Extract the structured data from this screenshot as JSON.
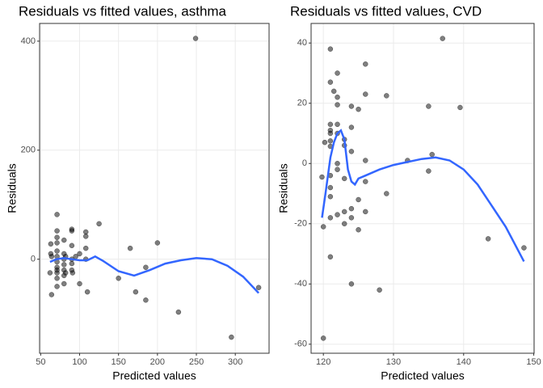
{
  "chart_data": [
    {
      "type": "scatter",
      "title": "Residuals vs fitted values, asthma",
      "x_label": "Predicted values",
      "y_label": "Residuals",
      "x": [
        62,
        63,
        63,
        64,
        64,
        71,
        71,
        71,
        71,
        71,
        71,
        71,
        71,
        71,
        71,
        71,
        71,
        80,
        80,
        80,
        80,
        80,
        80,
        80,
        82,
        82,
        90,
        90,
        90,
        90,
        90,
        90,
        91,
        95,
        100,
        100,
        108,
        108,
        108,
        108,
        110,
        125,
        150,
        165,
        172,
        185,
        185,
        200,
        227,
        249,
        295,
        330
      ],
      "y": [
        -25,
        28,
        10,
        5,
        -65,
        82,
        52,
        40,
        30,
        15,
        5,
        -5,
        -15,
        -20,
        -25,
        -35,
        -50,
        35,
        10,
        0,
        -10,
        -20,
        -30,
        -45,
        5,
        -25,
        55,
        52,
        25,
        0,
        -8,
        -20,
        -25,
        5,
        -45,
        10,
        50,
        42,
        20,
        0,
        -60,
        65,
        -35,
        20,
        -60,
        -15,
        -75,
        30,
        -97,
        405,
        -143,
        -52
      ],
      "point_color": "#000000",
      "trend": {
        "color": "#3366ff",
        "x": [
          62,
          70,
          80,
          90,
          100,
          110,
          120,
          130,
          150,
          170,
          190,
          210,
          230,
          250,
          270,
          290,
          310,
          330
        ],
        "y": [
          -5,
          0,
          2,
          0,
          -2,
          -2,
          5,
          -3,
          -22,
          -30,
          -20,
          -8,
          -2,
          2,
          0,
          -12,
          -32,
          -62
        ]
      },
      "xlim": [
        48.6,
        343.4
      ],
      "ylim": [
        -172.5,
        432.5
      ],
      "xticks": [
        50,
        100,
        150,
        200,
        250,
        300
      ],
      "yticks": [
        0,
        200,
        400
      ],
      "grid": true
    },
    {
      "type": "scatter",
      "title": "Residuals vs fitted values, CVD",
      "x_label": "Predicted values",
      "y_label": "Residuals",
      "x": [
        120,
        120,
        119.8,
        120.2,
        121,
        121,
        121,
        121,
        121,
        121,
        121,
        121,
        121,
        121,
        121,
        121,
        121.5,
        122,
        122,
        122,
        122,
        122,
        122,
        122,
        122,
        123,
        123,
        123,
        123,
        123,
        124,
        124,
        124,
        124,
        124,
        124,
        125,
        125,
        125,
        126,
        126,
        126,
        126,
        126,
        128,
        129,
        129,
        132,
        135,
        135,
        135.5,
        137,
        139.5,
        143.5,
        148.6
      ],
      "y": [
        -58,
        -21,
        -4.5,
        7,
        38,
        27,
        13,
        11,
        10,
        7.5,
        5.7,
        -4,
        -8,
        -11,
        -18,
        -31,
        24,
        30,
        22,
        19.5,
        13,
        10,
        0,
        -2,
        -17,
        8,
        6,
        -5,
        -16,
        -20,
        19,
        12,
        4,
        -15,
        -18,
        -40,
        18,
        -12,
        -22,
        23,
        33,
        1,
        -6,
        -16,
        -42,
        22.5,
        -10,
        1,
        19,
        -2.5,
        3,
        41.5,
        18.6,
        -25,
        -28
      ],
      "point_color": "#000000",
      "trend": {
        "color": "#3366ff",
        "x": [
          119.8,
          120.3,
          121,
          121.5,
          122,
          122.5,
          123,
          123.5,
          124,
          124.5,
          125,
          126,
          128,
          130,
          132,
          134,
          136,
          138,
          140,
          142,
          144,
          146,
          148.6
        ],
        "y": [
          -18,
          -10,
          2,
          7,
          10,
          11,
          8,
          -2,
          -6,
          -7,
          -5,
          -4,
          -2,
          -0.5,
          0.5,
          1.5,
          2,
          1,
          -2,
          -7,
          -14,
          -21,
          -32.5
        ]
      },
      "xlim": [
        118.25,
        150.05
      ],
      "ylim": [
        -63,
        46.5
      ],
      "xticks": [
        120,
        130,
        140,
        150
      ],
      "yticks": [
        -60,
        -40,
        -20,
        0,
        20,
        40
      ],
      "grid": true
    }
  ]
}
